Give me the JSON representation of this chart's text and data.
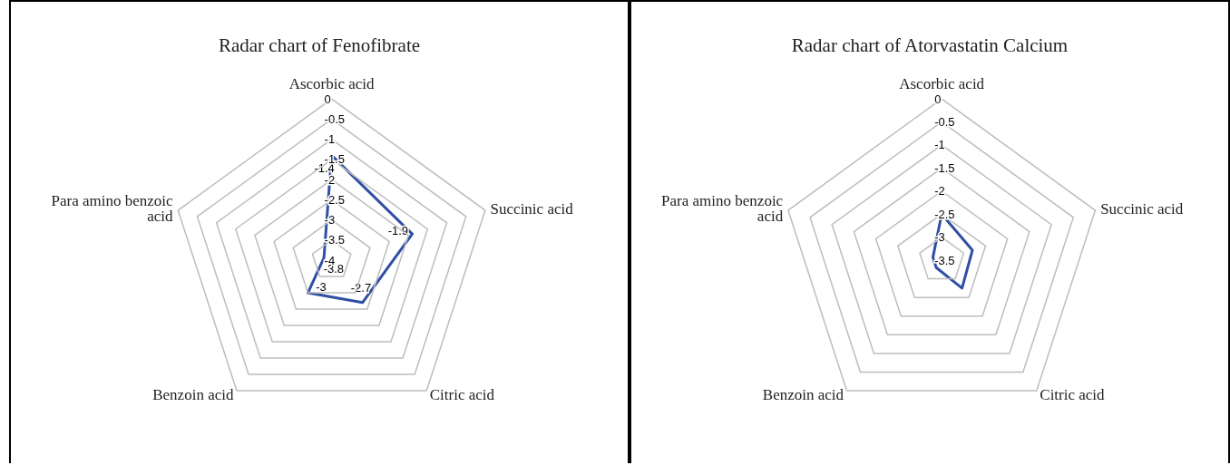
{
  "chart_data": [
    {
      "type": "radar",
      "title": "Radar chart of Fenofibrate",
      "categories": [
        "Ascorbic acid",
        "Succinic acid",
        "Citric acid",
        "Benzoin acid",
        "Para amino benzoic acid"
      ],
      "series": [
        {
          "color": "#2f4fa2",
          "values": [
            -1.4,
            -1.9,
            -2.7,
            -3,
            -3.8
          ]
        }
      ],
      "ylim": [
        -4,
        0
      ],
      "yticks": [
        -4,
        -3.5,
        -3,
        -2.5,
        -2,
        -1.5,
        -1,
        -0.5,
        0
      ],
      "grid": true,
      "marker": "none",
      "data_labels": true
    },
    {
      "type": "radar",
      "title": "Radar chart of Atorvastatin Calcium",
      "categories": [
        "Ascorbic acid",
        "Succinic acid",
        "Citric acid",
        "Benzoin acid",
        "Para amino benzoic acid"
      ],
      "series": [
        {
          "color": "#2f4fa2",
          "values": [
            -2.5,
            -2.8,
            -2.75,
            -3.3,
            -3.3
          ]
        }
      ],
      "ylim": [
        -3.5,
        0
      ],
      "yticks": [
        -3.5,
        -3,
        -2.5,
        -2,
        -1.5,
        -1,
        -0.5,
        0
      ],
      "grid": true,
      "marker": "none"
    }
  ]
}
